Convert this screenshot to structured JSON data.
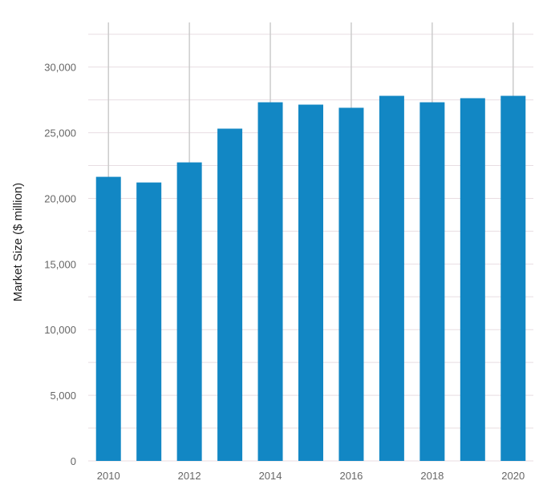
{
  "chart_data": {
    "type": "bar",
    "title": "",
    "xlabel": "",
    "ylabel": "Market Size ($ million)",
    "categories": [
      "2010",
      "2011",
      "2012",
      "2013",
      "2014",
      "2015",
      "2016",
      "2017",
      "2018",
      "2019",
      "2020"
    ],
    "x_tick_labels": [
      "2010",
      "2012",
      "2014",
      "2016",
      "2018",
      "2020"
    ],
    "values": [
      21640,
      21210,
      22740,
      25310,
      27320,
      27140,
      26900,
      27810,
      27320,
      27630,
      27810
    ],
    "y_ticks": [
      0,
      5000,
      10000,
      15000,
      20000,
      25000,
      30000
    ],
    "y_tick_labels": [
      "0",
      "5,000",
      "10,000",
      "15,000",
      "20,000",
      "25,000",
      "30,000"
    ],
    "ylim": [
      0,
      33400
    ],
    "grid": true,
    "minor_grid_step": 2500,
    "bar_color": "#1287c4",
    "grid_color": "#e8dde2",
    "vertical_grid_color": "#cccccc"
  }
}
